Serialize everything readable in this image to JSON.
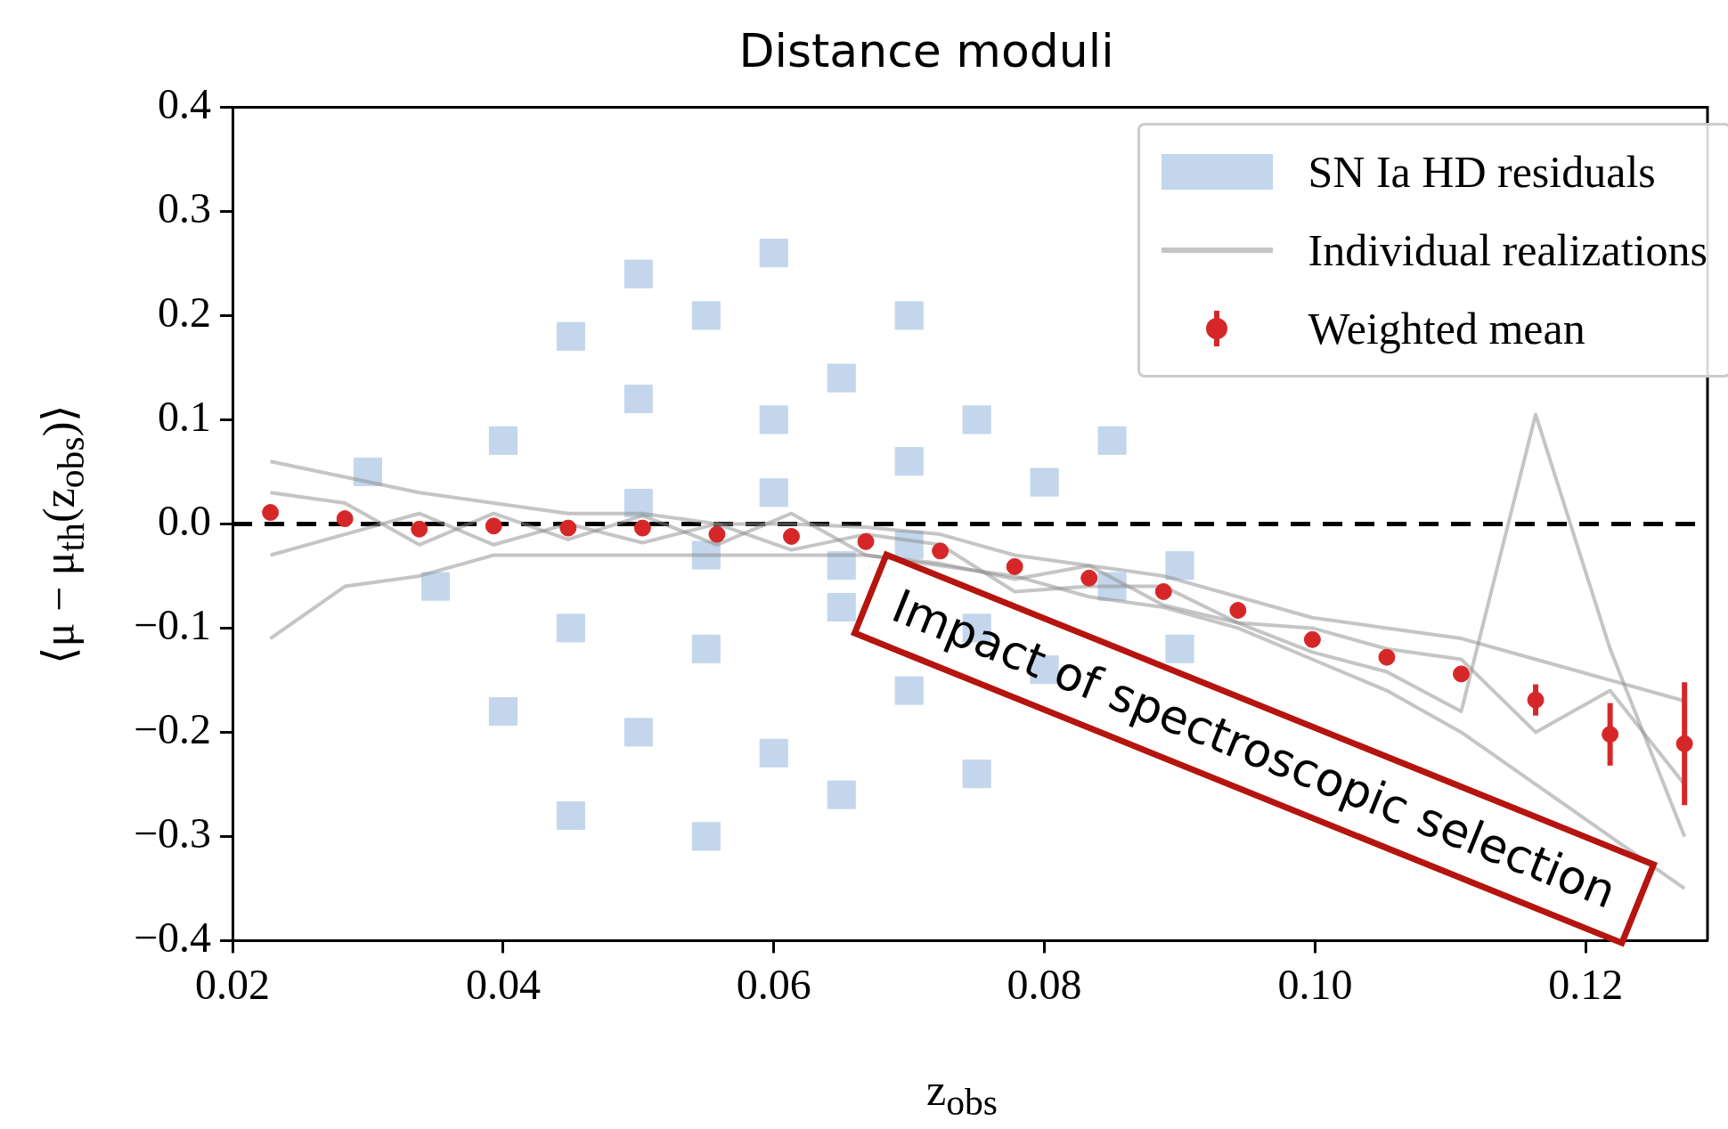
{
  "chart_data": {
    "type": "line",
    "title": "Distance moduli",
    "xlabel": "z$_{obs}$",
    "ylabel": "⟨μ − μ$_{th}$(z$_{obs}$)⟩",
    "xlim": [
      0.02,
      0.129
    ],
    "ylim": [
      -0.4,
      0.4
    ],
    "xticks": [
      0.02,
      0.04,
      0.06,
      0.08,
      {
        "value": 0.1,
        "label": "0.10"
      },
      0.12
    ],
    "yticks": [
      {
        "value": -0.4,
        "label": "−0.4"
      },
      {
        "value": -0.3,
        "label": "−0.3"
      },
      {
        "value": -0.2,
        "label": "−0.2"
      },
      {
        "value": -0.1,
        "label": "−0.1"
      },
      {
        "value": 0,
        "label": "0.0"
      },
      0.1,
      0.2,
      0.3,
      0.4
    ],
    "grid": false,
    "legend": "top right",
    "x": [
      0.0228,
      0.0283,
      0.0338,
      0.0393,
      0.0448,
      0.0503,
      0.0558,
      0.0613,
      0.0668,
      0.0723,
      0.0778,
      0.0833,
      0.0888,
      0.0943,
      0.0998,
      0.1053,
      0.1108,
      0.1163,
      0.1218,
      0.1273
    ],
    "ref_lines": [
      {
        "axis": "y",
        "value": 0,
        "color": "#000000",
        "line_style": "dashed"
      }
    ],
    "annotations": [
      "Impact of spectroscopic selection"
    ],
    "series": [
      {
        "name": "SN Ia HD residuals",
        "type": "scatter",
        "marker": "square",
        "color": "#c3d6ec",
        "x": [
          0.03,
          0.035,
          0.04,
          0.045,
          0.05,
          0.055,
          0.06,
          0.065,
          0.07,
          0.075,
          0.08,
          0.085,
          0.09,
          0.04,
          0.045,
          0.05,
          0.055,
          0.06,
          0.065,
          0.07,
          0.075,
          0.08,
          0.05,
          0.055,
          0.06,
          0.065,
          0.07,
          0.045,
          0.05,
          0.055,
          0.06,
          0.065,
          0.07,
          0.075,
          0.085,
          0.09
        ],
        "values": [
          0.05,
          -0.06,
          0.08,
          -0.1,
          0.12,
          -0.12,
          0.1,
          -0.08,
          0.06,
          -0.1,
          0.04,
          -0.06,
          -0.04,
          -0.18,
          0.18,
          -0.2,
          0.2,
          -0.22,
          0.14,
          -0.16,
          0.1,
          -0.14,
          0.02,
          -0.03,
          0.03,
          -0.04,
          -0.02,
          -0.28,
          0.24,
          -0.3,
          0.26,
          -0.26,
          0.2,
          -0.24,
          0.08,
          -0.12
        ]
      },
      {
        "name": "Individual realizations",
        "color": "#8c8c8c",
        "values": [
          0.06,
          0.045,
          0.03,
          0.02,
          0.01,
          0.01,
          0.0,
          0.0,
          -0.003,
          -0.01,
          -0.03,
          -0.04,
          -0.05,
          -0.07,
          -0.09,
          -0.1,
          -0.11,
          -0.13,
          -0.15,
          -0.17
        ]
      },
      {
        "color": "#8c8c8c",
        "values": [
          -0.11,
          -0.06,
          -0.05,
          -0.03,
          -0.03,
          -0.03,
          -0.03,
          -0.03,
          -0.03,
          -0.04,
          -0.05,
          -0.07,
          -0.08,
          -0.1,
          -0.13,
          -0.16,
          -0.2,
          -0.25,
          -0.3,
          -0.35
        ]
      },
      {
        "color": "#8c8c8c",
        "values": [
          0.03,
          0.02,
          -0.02,
          0.01,
          -0.015,
          0.008,
          -0.02,
          0.01,
          -0.03,
          -0.038,
          -0.053,
          -0.04,
          -0.078,
          -0.095,
          -0.123,
          -0.142,
          -0.18,
          0.105,
          -0.12,
          -0.3
        ]
      },
      {
        "color": "#8c8c8c",
        "values": [
          -0.03,
          -0.01,
          0.01,
          -0.02,
          0.0,
          -0.018,
          0.0,
          -0.025,
          -0.01,
          -0.02,
          -0.065,
          -0.06,
          -0.06,
          -0.095,
          -0.1,
          -0.12,
          -0.13,
          -0.2,
          -0.16,
          -0.25
        ]
      },
      {
        "name": "Weighted mean",
        "type": "scatter",
        "marker": "circle",
        "color": "#d62728",
        "values": [
          0.011,
          0.005,
          -0.005,
          -0.002,
          -0.004,
          -0.004,
          -0.01,
          -0.012,
          -0.017,
          -0.026,
          -0.041,
          -0.052,
          -0.065,
          -0.083,
          -0.111,
          -0.128,
          -0.144,
          -0.169,
          -0.202,
          -0.211
        ],
        "errors": [
          null,
          null,
          null,
          null,
          null,
          null,
          null,
          null,
          null,
          null,
          null,
          null,
          null,
          null,
          null,
          null,
          null,
          0.015,
          0.03,
          0.059
        ]
      }
    ]
  }
}
